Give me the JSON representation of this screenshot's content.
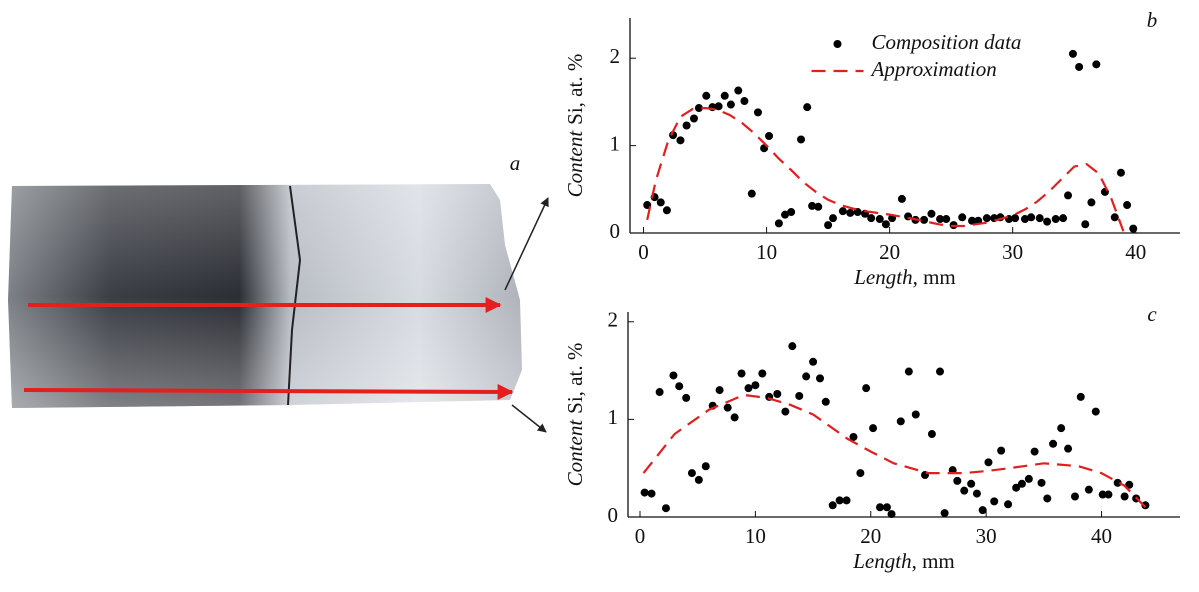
{
  "image": {
    "label": "a"
  },
  "chart_data": [
    {
      "type": "scatter",
      "panel_label": "b",
      "ylabel": [
        "Content",
        "Si, at. %"
      ],
      "xlabel": [
        "Length",
        ", mm"
      ],
      "xlim": [
        -1.1,
        43.6
      ],
      "xticks": [
        0,
        10,
        20,
        30,
        40
      ],
      "ylim": [
        0,
        2.46
      ],
      "yticks": [
        0,
        1,
        2
      ],
      "legend": "top",
      "series": [
        {
          "name": "Composition data",
          "color": "#000000",
          "style": "dots",
          "x": [
            0.3,
            0.9,
            1.4,
            1.9,
            2.4,
            3.0,
            3.5,
            4.1,
            4.5,
            5.1,
            5.6,
            6.1,
            6.6,
            7.1,
            7.7,
            8.2,
            8.8,
            9.3,
            9.8,
            10.2,
            11.0,
            11.5,
            12.0,
            12.8,
            13.3,
            13.7,
            14.2,
            15.0,
            15.4,
            16.2,
            16.8,
            17.4,
            18.0,
            18.5,
            19.2,
            19.7,
            20.2,
            21.0,
            21.5,
            22.1,
            22.8,
            23.4,
            24.1,
            24.6,
            25.2,
            25.9,
            26.7,
            27.2,
            27.9,
            28.5,
            29.0,
            29.7,
            30.2,
            31.0,
            31.5,
            32.2,
            32.8,
            33.5,
            34.1,
            34.5,
            34.9,
            35.4,
            35.9,
            36.4,
            36.8,
            37.5,
            38.3,
            38.8,
            39.3,
            39.8
          ],
          "values": [
            0.32,
            0.41,
            0.35,
            0.26,
            1.12,
            1.06,
            1.23,
            1.31,
            1.43,
            1.57,
            1.44,
            1.45,
            1.57,
            1.47,
            1.63,
            1.51,
            0.45,
            1.38,
            0.97,
            1.11,
            0.11,
            0.21,
            0.24,
            1.07,
            1.44,
            0.31,
            0.3,
            0.09,
            0.17,
            0.25,
            0.23,
            0.24,
            0.22,
            0.17,
            0.16,
            0.1,
            0.17,
            0.39,
            0.19,
            0.15,
            0.15,
            0.22,
            0.16,
            0.16,
            0.09,
            0.18,
            0.14,
            0.14,
            0.17,
            0.17,
            0.18,
            0.16,
            0.17,
            0.16,
            0.18,
            0.17,
            0.13,
            0.16,
            0.17,
            0.43,
            2.05,
            1.9,
            0.1,
            0.35,
            1.93,
            0.47,
            0.18,
            0.69,
            0.32,
            0.05
          ]
        },
        {
          "name": "Approximation",
          "color": "#e02020",
          "style": "dashed",
          "x": [
            0.3,
            1,
            2,
            3,
            4,
            5,
            6,
            7,
            8,
            9,
            10,
            11,
            12,
            13,
            14,
            15,
            16,
            17,
            18,
            20,
            22,
            24,
            25,
            26,
            28,
            30,
            31,
            32,
            33,
            34,
            35,
            36,
            37,
            38,
            39
          ],
          "values": [
            0.15,
            0.6,
            1.05,
            1.33,
            1.42,
            1.43,
            1.41,
            1.35,
            1.26,
            1.14,
            1.0,
            0.85,
            0.72,
            0.58,
            0.47,
            0.38,
            0.32,
            0.28,
            0.25,
            0.21,
            0.16,
            0.1,
            0.08,
            0.08,
            0.12,
            0.2,
            0.27,
            0.36,
            0.48,
            0.62,
            0.76,
            0.79,
            0.68,
            0.4,
            0.02
          ]
        }
      ]
    },
    {
      "type": "scatter",
      "panel_label": "c",
      "ylabel": [
        "Content",
        "Si, at. %"
      ],
      "xlabel": [
        "Length",
        ", mm"
      ],
      "xlim": [
        -1.04,
        46.8
      ],
      "xticks": [
        0,
        10,
        20,
        30,
        40
      ],
      "ylim": [
        0,
        2.1
      ],
      "yticks": [
        0,
        1,
        2
      ],
      "series": [
        {
          "color": "#000000",
          "style": "dots",
          "x": [
            0.4,
            1.0,
            1.7,
            2.25,
            2.9,
            3.4,
            4.0,
            4.5,
            5.1,
            5.7,
            6.3,
            6.9,
            7.6,
            8.2,
            8.8,
            9.4,
            10.0,
            10.6,
            11.2,
            11.9,
            12.6,
            13.2,
            13.8,
            14.4,
            15.0,
            15.6,
            16.1,
            16.7,
            17.3,
            17.9,
            18.5,
            19.1,
            19.6,
            20.2,
            20.8,
            21.4,
            21.8,
            22.6,
            23.3,
            23.9,
            24.7,
            25.3,
            26.0,
            26.4,
            27.1,
            27.5,
            28.1,
            28.7,
            29.2,
            29.7,
            30.2,
            30.7,
            31.3,
            31.9,
            32.6,
            33.1,
            33.7,
            34.2,
            34.8,
            35.3,
            35.8,
            36.5,
            37.1,
            37.7,
            38.2,
            38.9,
            39.5,
            40.1,
            40.6,
            41.4,
            42.0,
            42.4,
            43.0,
            43.8
          ],
          "values": [
            0.25,
            0.24,
            1.28,
            0.09,
            1.45,
            1.34,
            1.22,
            0.45,
            0.38,
            0.52,
            1.14,
            1.3,
            1.12,
            1.02,
            1.47,
            1.32,
            1.35,
            1.47,
            1.23,
            1.26,
            1.08,
            1.75,
            1.24,
            1.44,
            1.59,
            1.42,
            1.18,
            0.12,
            0.17,
            0.17,
            0.82,
            0.45,
            1.32,
            0.91,
            0.1,
            0.1,
            0.03,
            0.98,
            1.49,
            1.05,
            0.43,
            0.85,
            1.49,
            0.04,
            0.48,
            0.37,
            0.27,
            0.34,
            0.24,
            0.07,
            0.56,
            0.16,
            0.68,
            0.13,
            0.3,
            0.34,
            0.39,
            0.67,
            0.35,
            0.19,
            0.75,
            0.91,
            0.7,
            0.21,
            1.23,
            0.28,
            1.08,
            0.23,
            0.23,
            0.35,
            0.21,
            0.33,
            0.19,
            0.12
          ]
        },
        {
          "color": "#e02020",
          "style": "dashed",
          "x": [
            0.3,
            3,
            6,
            9,
            11,
            13,
            15,
            18,
            20,
            22,
            25,
            28,
            30,
            32,
            35,
            38,
            40,
            42,
            43.8
          ],
          "values": [
            0.45,
            0.85,
            1.1,
            1.25,
            1.22,
            1.15,
            1.05,
            0.8,
            0.67,
            0.55,
            0.45,
            0.45,
            0.47,
            0.5,
            0.55,
            0.52,
            0.45,
            0.32,
            0.1
          ]
        }
      ]
    }
  ]
}
